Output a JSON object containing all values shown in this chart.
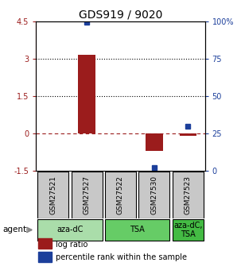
{
  "title": "GDS919 / 9020",
  "samples": [
    "GSM27521",
    "GSM27527",
    "GSM27522",
    "GSM27530",
    "GSM27523"
  ],
  "log_ratios": [
    0.0,
    3.15,
    0.0,
    -0.72,
    -0.1
  ],
  "percentile_ranks": [
    null,
    99.5,
    null,
    2.0,
    30.0
  ],
  "ylim_left": [
    -1.5,
    4.5
  ],
  "ylim_right": [
    0,
    100
  ],
  "yticks_left": [
    -1.5,
    0,
    1.5,
    3,
    4.5
  ],
  "yticks_right": [
    0,
    25,
    50,
    75,
    100
  ],
  "ytick_labels_left": [
    "-1.5",
    "0",
    "1.5",
    "3",
    "4.5"
  ],
  "ytick_labels_right": [
    "0",
    "25",
    "50",
    "75",
    "100%"
  ],
  "hlines": [
    3.0,
    1.5
  ],
  "zero_line": 0.0,
  "bar_color": "#9B1C1C",
  "dot_color": "#1C3F9B",
  "agent_groups": [
    {
      "label": "aza-dC",
      "cols": [
        0,
        1
      ],
      "color": "#AADDAA"
    },
    {
      "label": "TSA",
      "cols": [
        2,
        3
      ],
      "color": "#66CC66"
    },
    {
      "label": "aza-dC,\nTSA",
      "cols": [
        4
      ],
      "color": "#44BB44"
    }
  ],
  "agent_label": "agent",
  "legend_items": [
    {
      "color": "#9B1C1C",
      "label": "log ratio"
    },
    {
      "color": "#1C3F9B",
      "label": "percentile rank within the sample"
    }
  ],
  "sample_box_color": "#C8C8C8",
  "title_fontsize": 10,
  "tick_fontsize": 7,
  "legend_fontsize": 7
}
